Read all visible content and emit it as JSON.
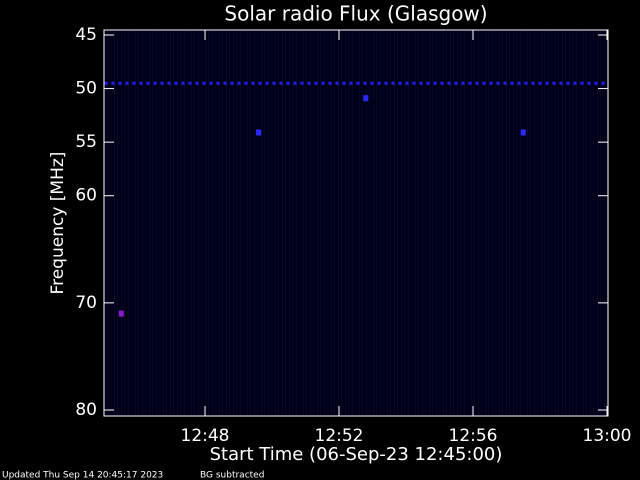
{
  "chart_data": {
    "type": "spectrogram",
    "title": "Solar radio Flux (Glasgow)",
    "x_label": "Start Time (06-Sep-23 12:45:00)",
    "y_label": "Frequency [MHz]",
    "footer": "Updated Thu Sep 14 20:45:17 2023",
    "note": "BG subtracted",
    "xlim": [
      765,
      780
    ],
    "xticks": [
      {
        "value": 768,
        "label": "12:48"
      },
      {
        "value": 772,
        "label": "12:52"
      },
      {
        "value": 776,
        "label": "12:56"
      },
      {
        "value": 780,
        "label": "13:00"
      }
    ],
    "ylim": [
      80,
      45
    ],
    "yticks": [
      45,
      50,
      55,
      60,
      70,
      80
    ],
    "series": [
      {
        "style": "dotted",
        "color": "#2020ff",
        "x": [
          765,
          780
        ],
        "values": [
          49.5,
          49.5
        ]
      },
      {
        "style": "points",
        "color": "#2a2aff",
        "x": [
          772.8,
          769.6,
          777.5
        ],
        "values": [
          50.9,
          54.1,
          54.1
        ]
      },
      {
        "style": "points",
        "color": "#8a1ad0",
        "x": [
          765.5
        ],
        "values": [
          71
        ]
      }
    ]
  }
}
